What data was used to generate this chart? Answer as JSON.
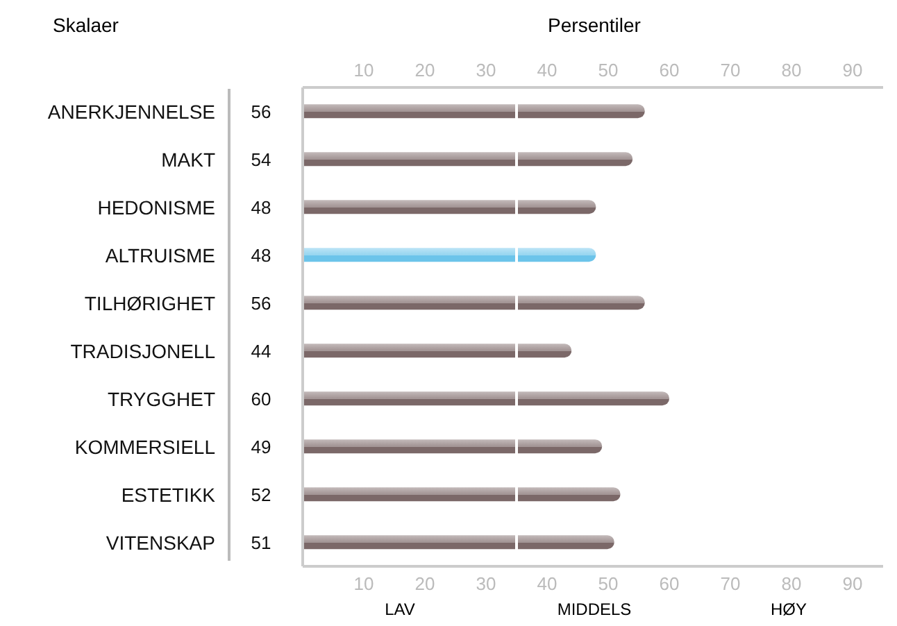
{
  "chart_data": {
    "type": "bar",
    "orientation": "horizontal",
    "xlabel": "Persentiler",
    "ylabel": "Skalaer",
    "categories": [
      "ANERKJENNELSE",
      "MAKT",
      "HEDONISME",
      "ALTRUISME",
      "TILHØRIGHET",
      "TRADISJONELL",
      "TRYGGHET",
      "KOMMERSIELL",
      "ESTETIKK",
      "VITENSKAP"
    ],
    "values": [
      56,
      54,
      48,
      48,
      56,
      44,
      60,
      49,
      52,
      51
    ],
    "colors": [
      "#7b6868",
      "#7b6868",
      "#7b6868",
      "#6cc4ea",
      "#7b6868",
      "#7b6868",
      "#7b6868",
      "#7b6868",
      "#7b6868",
      "#7b6868"
    ],
    "data_labels": true,
    "xlim": [
      0,
      95
    ],
    "xticks": [
      10,
      20,
      30,
      40,
      50,
      60,
      70,
      80,
      90
    ],
    "x2lim": [
      0,
      95
    ],
    "x2ticks": [
      10,
      20,
      30,
      40,
      50,
      60,
      70,
      80,
      90
    ],
    "ref_lines": [
      {
        "axis": "x",
        "value": 35,
        "color": "#ffffff"
      }
    ],
    "annotations": [
      "LAV",
      "MIDDELS",
      "HØY"
    ]
  }
}
